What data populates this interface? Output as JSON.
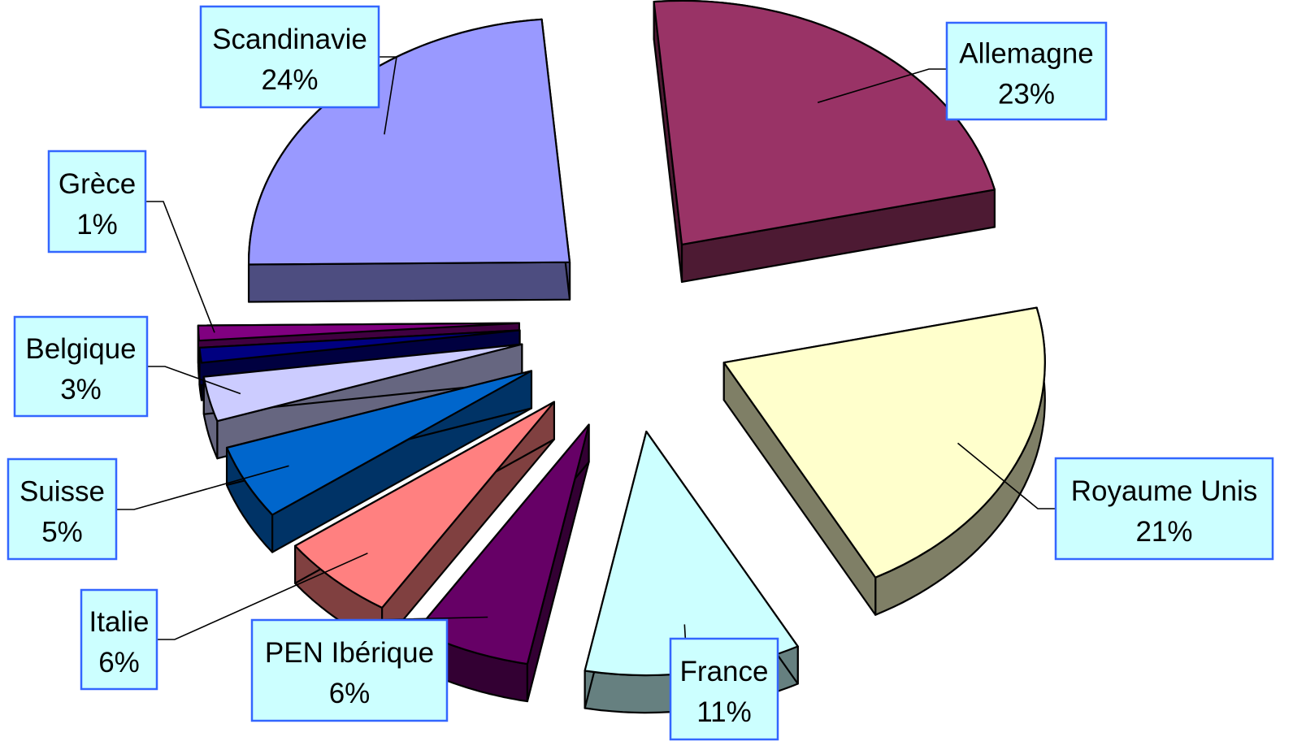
{
  "chart_data": {
    "type": "pie",
    "title": "",
    "style": "3D exploded pie",
    "slices": [
      {
        "name": "Allemagne",
        "value": 23,
        "label": "23%",
        "color": "#993366",
        "side_color": "#4d1a33"
      },
      {
        "name": "Royaume Unis",
        "value": 21,
        "label": "21%",
        "color": "#ffffcc",
        "side_color": "#7f7f66"
      },
      {
        "name": "France",
        "value": 11,
        "label": "11%",
        "color": "#ccffff",
        "side_color": "#668080"
      },
      {
        "name": "PEN Ibérique",
        "value": 6,
        "label": "6%",
        "color": "#660066",
        "side_color": "#330033"
      },
      {
        "name": "Italie",
        "value": 6,
        "label": "6%",
        "color": "#ff8080",
        "side_color": "#804040"
      },
      {
        "name": "Suisse",
        "value": 5,
        "label": "5%",
        "color": "#0066cc",
        "side_color": "#003366"
      },
      {
        "name": "Belgique",
        "value": 3,
        "label": "3%",
        "color": "#ccccff",
        "side_color": "#666680"
      },
      {
        "name": "",
        "value": 1,
        "label": "",
        "color": "#000080",
        "side_color": "#000040"
      },
      {
        "name": "Grèce",
        "value": 1,
        "label": "1%",
        "color": "#800080",
        "side_color": "#400040"
      },
      {
        "name": "Scandinavie",
        "value": 24,
        "label": "24%",
        "color": "#9999ff",
        "side_color": "#4d4d80"
      }
    ],
    "label_box_fill": "#ccffff",
    "label_box_border": "#3366ff"
  }
}
